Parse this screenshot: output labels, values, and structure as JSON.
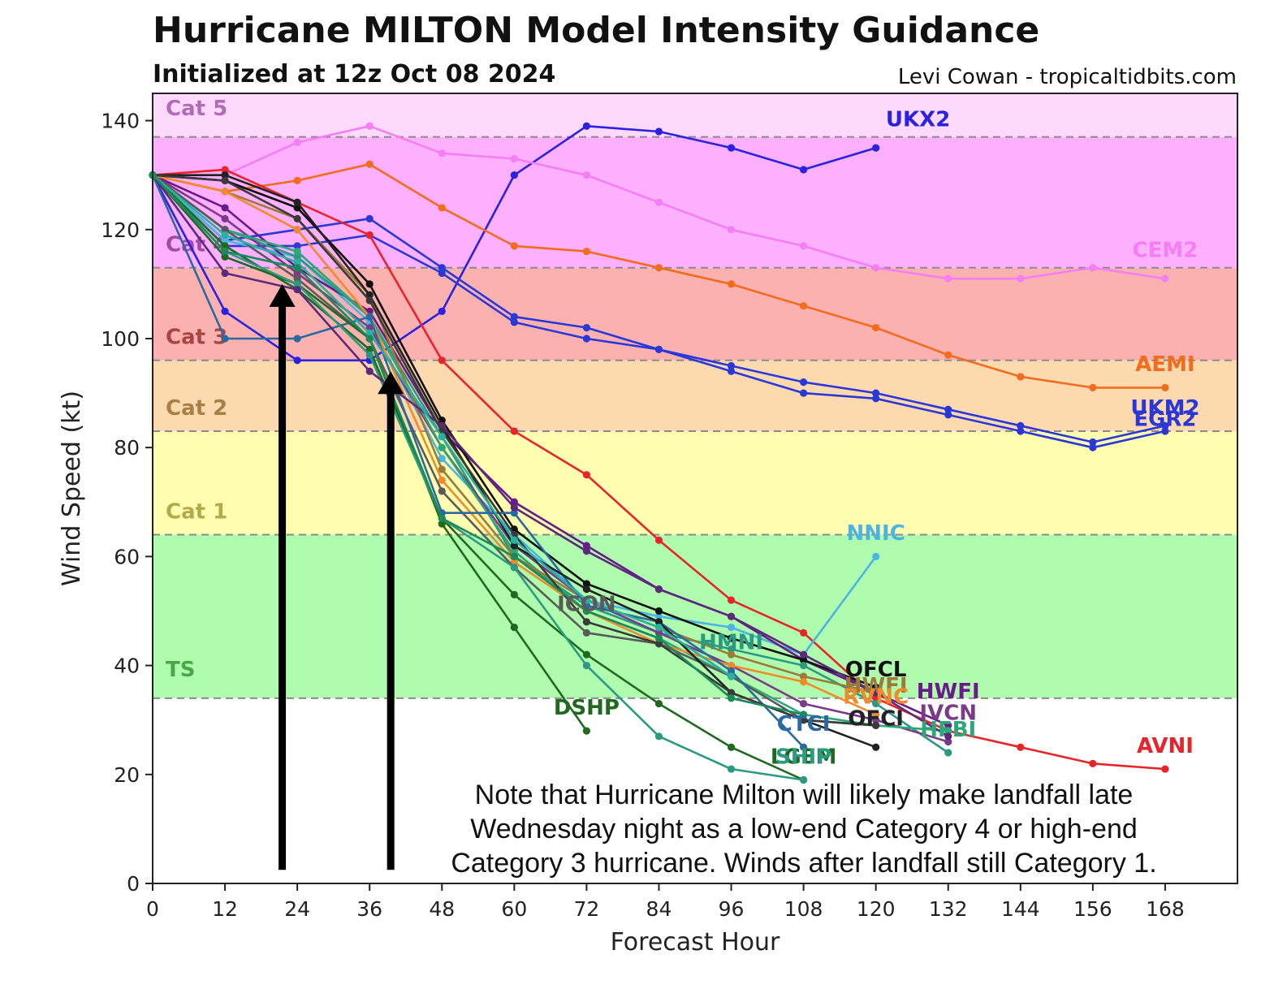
{
  "header": {
    "title": "Hurricane MILTON Model Intensity Guidance",
    "subtitle": "Initialized at 12z Oct 08 2024",
    "credit": "Levi Cowan - tropicaltidbits.com"
  },
  "annotation": {
    "note": "Note that Hurricane Milton will likely make landfall late\nWednesday night as a low-end Category 4 or high-end\nCategory 3 hurricane. Winds after landfall still Category 1."
  },
  "chart_data": {
    "type": "line",
    "xlabel": "Forecast Hour",
    "ylabel": "Wind Speed (kt)",
    "xlim": [
      0,
      180
    ],
    "ylim": [
      0,
      145
    ],
    "xticks": [
      0,
      12,
      24,
      36,
      48,
      60,
      72,
      84,
      96,
      108,
      120,
      132,
      144,
      156,
      168
    ],
    "yticks": [
      0,
      20,
      40,
      60,
      80,
      100,
      120,
      140
    ],
    "grid": false,
    "bands": [
      {
        "label": "TS",
        "from": 34,
        "to": 64,
        "fill": "#b0fcae",
        "label_color": "#4aa84a",
        "label_y": 38
      },
      {
        "label": "Cat 1",
        "from": 64,
        "to": 83,
        "fill": "#fffdb0",
        "label_color": "#b2ab4c",
        "label_y": 67
      },
      {
        "label": "Cat 2",
        "from": 83,
        "to": 96,
        "fill": "#fdd9b0",
        "label_color": "#a87f45",
        "label_y": 86
      },
      {
        "label": "Cat 3",
        "from": 96,
        "to": 113,
        "fill": "#fcb1b1",
        "label_color": "#a84545",
        "label_y": 99
      },
      {
        "label": "Cat 4",
        "from": 113,
        "to": 137,
        "fill": "#fdb0fd",
        "label_color": "#a04ca4",
        "label_y": 116
      },
      {
        "label": "Cat 5",
        "from": 137,
        "to": 145,
        "fill": "#fdd9fd",
        "label_color": "#b06cb6",
        "label_y": 141
      }
    ],
    "arrows": [
      {
        "x": 21.5,
        "y_start": 2.5,
        "y_end": 110
      },
      {
        "x": 39.5,
        "y_start": 2.5,
        "y_end": 94
      }
    ],
    "series": [
      {
        "name": "UKX2",
        "color": "#2a22e0",
        "label_at": [
          127,
          139
        ],
        "x": [
          0,
          12,
          24,
          36,
          48,
          60,
          72,
          84,
          96,
          108,
          120
        ],
        "y": [
          130,
          105,
          96,
          96,
          105,
          130,
          139,
          138,
          135,
          131,
          135
        ]
      },
      {
        "name": "CEM2",
        "color": "#f47ef4",
        "label_at": [
          168,
          115
        ],
        "x": [
          0,
          12,
          24,
          36,
          48,
          60,
          72,
          84,
          96,
          108,
          120,
          132,
          144,
          156,
          168
        ],
        "y": [
          130,
          130,
          136,
          139,
          134,
          133,
          130,
          125,
          120,
          117,
          113,
          111,
          111,
          113,
          111
        ]
      },
      {
        "name": "AEMI",
        "color": "#f26c1e",
        "label_at": [
          168,
          94
        ],
        "x": [
          0,
          12,
          24,
          36,
          48,
          60,
          72,
          84,
          96,
          108,
          120,
          132,
          144,
          156,
          168
        ],
        "y": [
          130,
          127,
          129,
          132,
          124,
          117,
          116,
          113,
          110,
          106,
          102,
          97,
          93,
          91,
          91
        ]
      },
      {
        "name": "UKM2",
        "color": "#2a38d8",
        "label_at": [
          168,
          86
        ],
        "x": [
          0,
          12,
          24,
          36,
          48,
          60,
          72,
          84,
          96,
          108,
          120,
          132,
          144,
          156,
          168
        ],
        "y": [
          130,
          118,
          120,
          122,
          113,
          104,
          102,
          98,
          95,
          92,
          90,
          87,
          84,
          81,
          84
        ]
      },
      {
        "name": "EGR2",
        "color": "#2a38d8",
        "label_at": [
          168,
          84
        ],
        "x": [
          0,
          12,
          24,
          36,
          48,
          60,
          72,
          84,
          96,
          108,
          120,
          132,
          144,
          156,
          168
        ],
        "y": [
          130,
          117,
          117,
          119,
          112,
          103,
          100,
          98,
          94,
          90,
          89,
          86,
          83,
          80,
          83
        ]
      },
      {
        "name": "AVNI",
        "color": "#e8242a",
        "label_at": [
          168,
          24
        ],
        "x": [
          0,
          12,
          24,
          36,
          48,
          60,
          72,
          84,
          96,
          108,
          120,
          132,
          144,
          156,
          168
        ],
        "y": [
          130,
          131,
          125,
          119,
          96,
          83,
          75,
          63,
          52,
          46,
          34,
          28,
          25,
          22,
          21
        ]
      },
      {
        "name": "NNIC",
        "color": "#4ab4e2",
        "label_at": [
          120,
          63
        ],
        "x": [
          0,
          12,
          24,
          36,
          48,
          60,
          72,
          84,
          96,
          108,
          120
        ],
        "y": [
          130,
          118,
          115,
          103,
          78,
          64,
          52,
          49,
          47,
          42,
          60
        ]
      },
      {
        "name": "HWFI",
        "color": "#6a1a8a",
        "label_at": [
          132,
          34
        ],
        "x": [
          0,
          12,
          24,
          36,
          48,
          60,
          72,
          84,
          96,
          108,
          120,
          132
        ],
        "y": [
          130,
          124,
          113,
          105,
          83,
          70,
          62,
          54,
          49,
          41,
          35,
          29
        ]
      },
      {
        "name": "OFCL",
        "color": "#111111",
        "label_at": [
          120,
          38
        ],
        "x": [
          0,
          12,
          24,
          36,
          48,
          60,
          72,
          84,
          96,
          108,
          120
        ],
        "y": [
          130,
          129,
          124,
          110,
          85,
          65,
          55,
          50,
          45,
          41,
          36
        ]
      },
      {
        "name": "HMNI",
        "color": "#2a9a82",
        "label_at": [
          96,
          43
        ],
        "x": [
          0,
          12,
          24,
          36,
          48,
          60,
          72,
          84,
          96,
          108,
          120,
          132
        ],
        "y": [
          130,
          120,
          115,
          104,
          82,
          60,
          51,
          46,
          43,
          40,
          33,
          24
        ]
      },
      {
        "name": "IVCN",
        "color": "#7b3a8a",
        "label_at": [
          132,
          30
        ],
        "x": [
          0,
          12,
          24,
          36,
          48,
          60,
          72,
          84,
          96,
          108,
          120,
          132
        ],
        "y": [
          130,
          122,
          112,
          102,
          80,
          62,
          52,
          46,
          40,
          33,
          30,
          26
        ]
      },
      {
        "name": "HFBI",
        "color": "#2aa878",
        "label_at": [
          132,
          27
        ],
        "x": [
          0,
          12,
          24,
          36,
          48,
          60,
          72,
          84,
          96,
          108,
          120,
          132
        ],
        "y": [
          130,
          120,
          116,
          104,
          80,
          61,
          50,
          45,
          38,
          31,
          29,
          28
        ]
      },
      {
        "name": "HWFI",
        "color": "#9b7a3a",
        "label_at": [
          120,
          35
        ],
        "x": [
          0,
          12,
          24,
          36,
          48,
          60,
          72,
          84,
          96,
          108,
          120
        ],
        "y": [
          130,
          127,
          122,
          108,
          76,
          60,
          52,
          47,
          42,
          38,
          35
        ]
      },
      {
        "name": "RVNC",
        "color": "#f08a2a",
        "label_at": [
          120,
          33
        ],
        "x": [
          0,
          12,
          24,
          36,
          48,
          60,
          72,
          84,
          96,
          108,
          120
        ],
        "y": [
          130,
          127,
          120,
          104,
          74,
          59,
          50,
          44,
          40,
          37,
          31
        ]
      },
      {
        "name": "ICON",
        "color": "#5a5a5a",
        "label_at": [
          72,
          50
        ],
        "x": [
          0,
          12,
          24,
          36,
          48,
          60,
          72,
          84,
          96,
          108,
          120
        ],
        "y": [
          130,
          120,
          111,
          100,
          72,
          58,
          46,
          44,
          38,
          30,
          29
        ]
      },
      {
        "name": "CTCI",
        "color": "#2a6aa0",
        "label_at": [
          108,
          28
        ],
        "x": [
          0,
          12,
          24,
          36,
          48,
          60,
          72,
          84,
          96,
          108
        ],
        "y": [
          130,
          100,
          100,
          104,
          68,
          68,
          51,
          48,
          39,
          25
        ]
      },
      {
        "name": "OFCI",
        "color": "#222222",
        "label_at": [
          120,
          29
        ],
        "x": [
          0,
          12,
          24,
          36,
          48,
          60,
          72,
          84,
          96,
          108,
          120
        ],
        "y": [
          130,
          130,
          125,
          108,
          84,
          62,
          54,
          48,
          35,
          30,
          25
        ]
      },
      {
        "name": "DSHP",
        "color": "#1f6a1f",
        "label_at": [
          72,
          31
        ],
        "x": [
          0,
          12,
          24,
          36,
          48,
          60,
          72
        ],
        "y": [
          130,
          115,
          110,
          100,
          66,
          47,
          28
        ]
      },
      {
        "name": "LGEM",
        "color": "#1f6a1f",
        "label_at": [
          108,
          22
        ],
        "x": [
          0,
          12,
          24,
          36,
          48,
          60,
          72,
          84,
          96,
          108
        ],
        "y": [
          130,
          117,
          109,
          98,
          67,
          53,
          42,
          33,
          25,
          19
        ]
      },
      {
        "name": "SHIP",
        "color": "#2a9a82",
        "label_at": [
          108,
          22
        ],
        "x": [
          0,
          12,
          24,
          36,
          48,
          60,
          72,
          84,
          96,
          108
        ],
        "y": [
          130,
          116,
          110,
          97,
          67,
          58,
          40,
          27,
          21,
          19
        ]
      },
      {
        "name": "",
        "color": "#5c2a7a",
        "label_at": null,
        "x": [
          0,
          12,
          24,
          36,
          48,
          60,
          72,
          84,
          96,
          108,
          120,
          132
        ],
        "y": [
          130,
          112,
          109,
          94,
          84,
          69,
          61,
          54,
          49,
          42,
          35,
          27
        ]
      },
      {
        "name": "",
        "color": "#3a3a3a",
        "label_at": null,
        "x": [
          0,
          12,
          24,
          36,
          48,
          60,
          72,
          84,
          96,
          108,
          120
        ],
        "y": [
          130,
          129,
          122,
          107,
          83,
          64,
          48,
          44,
          35,
          30,
          29
        ]
      },
      {
        "name": "",
        "color": "#2ab0a0",
        "label_at": null,
        "x": [
          0,
          12,
          24,
          36,
          48,
          60,
          72,
          84,
          96
        ],
        "y": [
          130,
          119,
          114,
          101,
          82,
          63,
          52,
          47,
          38
        ]
      },
      {
        "name": "",
        "color": "#1a8a5a",
        "label_at": null,
        "x": [
          0,
          12,
          24,
          36,
          48,
          60,
          72,
          84,
          96,
          108
        ],
        "y": [
          130,
          116,
          113,
          100,
          67,
          60,
          50,
          45,
          34,
          31
        ]
      }
    ]
  }
}
